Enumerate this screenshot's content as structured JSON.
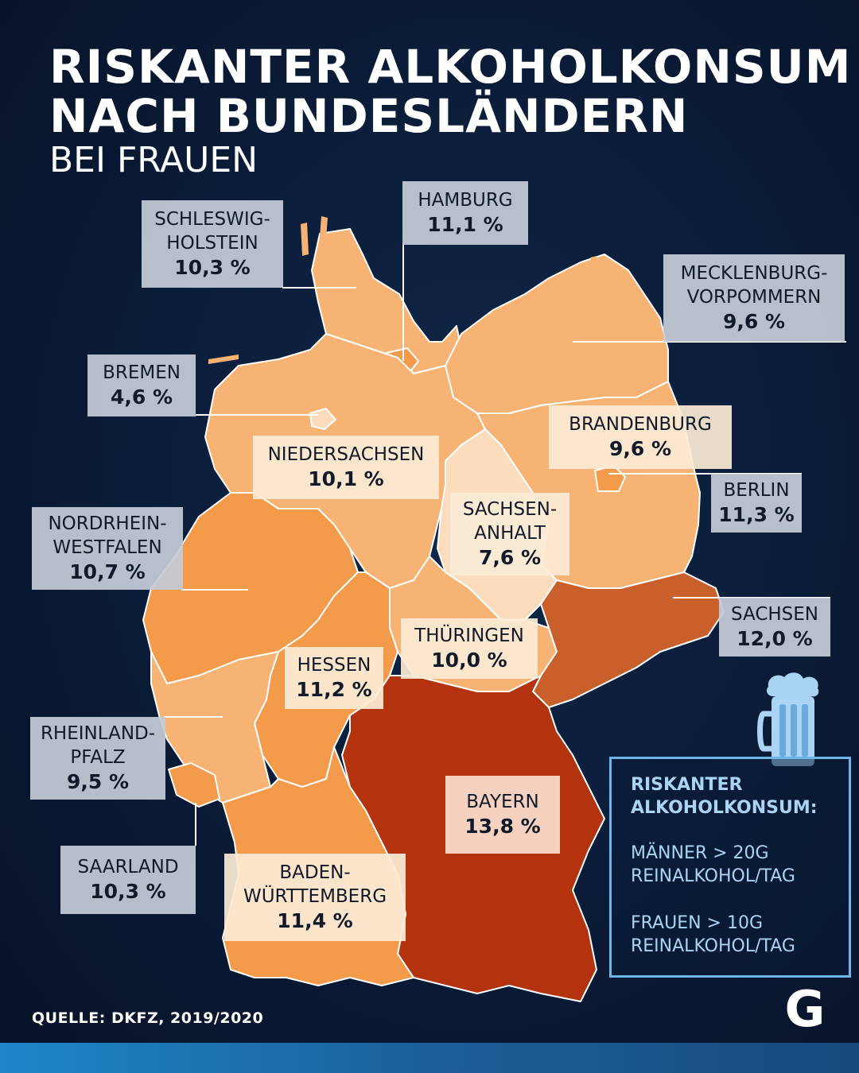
{
  "header": {
    "title_line1": "RISKANTER ALKOHOLKONSUM",
    "title_line2": "NACH BUNDESLÄNDERN",
    "subtitle": "BEI FRAUEN"
  },
  "colors": {
    "lightest": "#fbdcbc",
    "light": "#f6b374",
    "medium": "#f49a4b",
    "dark": "#c9602c",
    "darkest": "#b3330e",
    "legend_accent": "#6eb6ea"
  },
  "states": {
    "schleswig_holstein": {
      "name": "SCHLESWIG-\nHOLSTEIN",
      "value": "10,3 %"
    },
    "hamburg": {
      "name": "HAMBURG",
      "value": "11,1 %"
    },
    "mecklenburg_vorpommern": {
      "name": "MECKLENBURG-\nVORPOMMERN",
      "value": "9,6 %"
    },
    "bremen": {
      "name": "BREMEN",
      "value": "4,6 %"
    },
    "niedersachsen": {
      "name": "NIEDERSACHSEN",
      "value": "10,1 %"
    },
    "brandenburg": {
      "name": "BRANDENBURG",
      "value": "9,6 %"
    },
    "berlin": {
      "name": "BERLIN",
      "value": "11,3 %"
    },
    "sachsen_anhalt": {
      "name": "SACHSEN-\nANHALT",
      "value": "7,6 %"
    },
    "nordrhein_westfalen": {
      "name": "NORDRHEIN-\nWESTFALEN",
      "value": "10,7 %"
    },
    "sachsen": {
      "name": "SACHSEN",
      "value": "12,0 %"
    },
    "thueringen": {
      "name": "THÜRINGEN",
      "value": "10,0 %"
    },
    "hessen": {
      "name": "HESSEN",
      "value": "11,2 %"
    },
    "rheinland_pfalz": {
      "name": "RHEINLAND-\nPFALZ",
      "value": "9,5 %"
    },
    "bayern": {
      "name": "BAYERN",
      "value": "13,8 %"
    },
    "saarland": {
      "name": "SAARLAND",
      "value": "10,3 %"
    },
    "baden_wuerttemberg": {
      "name": "BADEN-\nWÜRTTEMBERG",
      "value": "11,4 %"
    }
  },
  "legend": {
    "title": "RISKANTER\nALKOHOLKONSUM:",
    "men": "MÄNNER > 20G\nREINALKOHOL/TAG",
    "women": "FRAUEN > 10G\nREINALKOHOL/TAG"
  },
  "source": "QUELLE: DKFZ, 2019/2020",
  "logo_letter": "G",
  "icons": {
    "beer": "beer-mug-icon"
  }
}
